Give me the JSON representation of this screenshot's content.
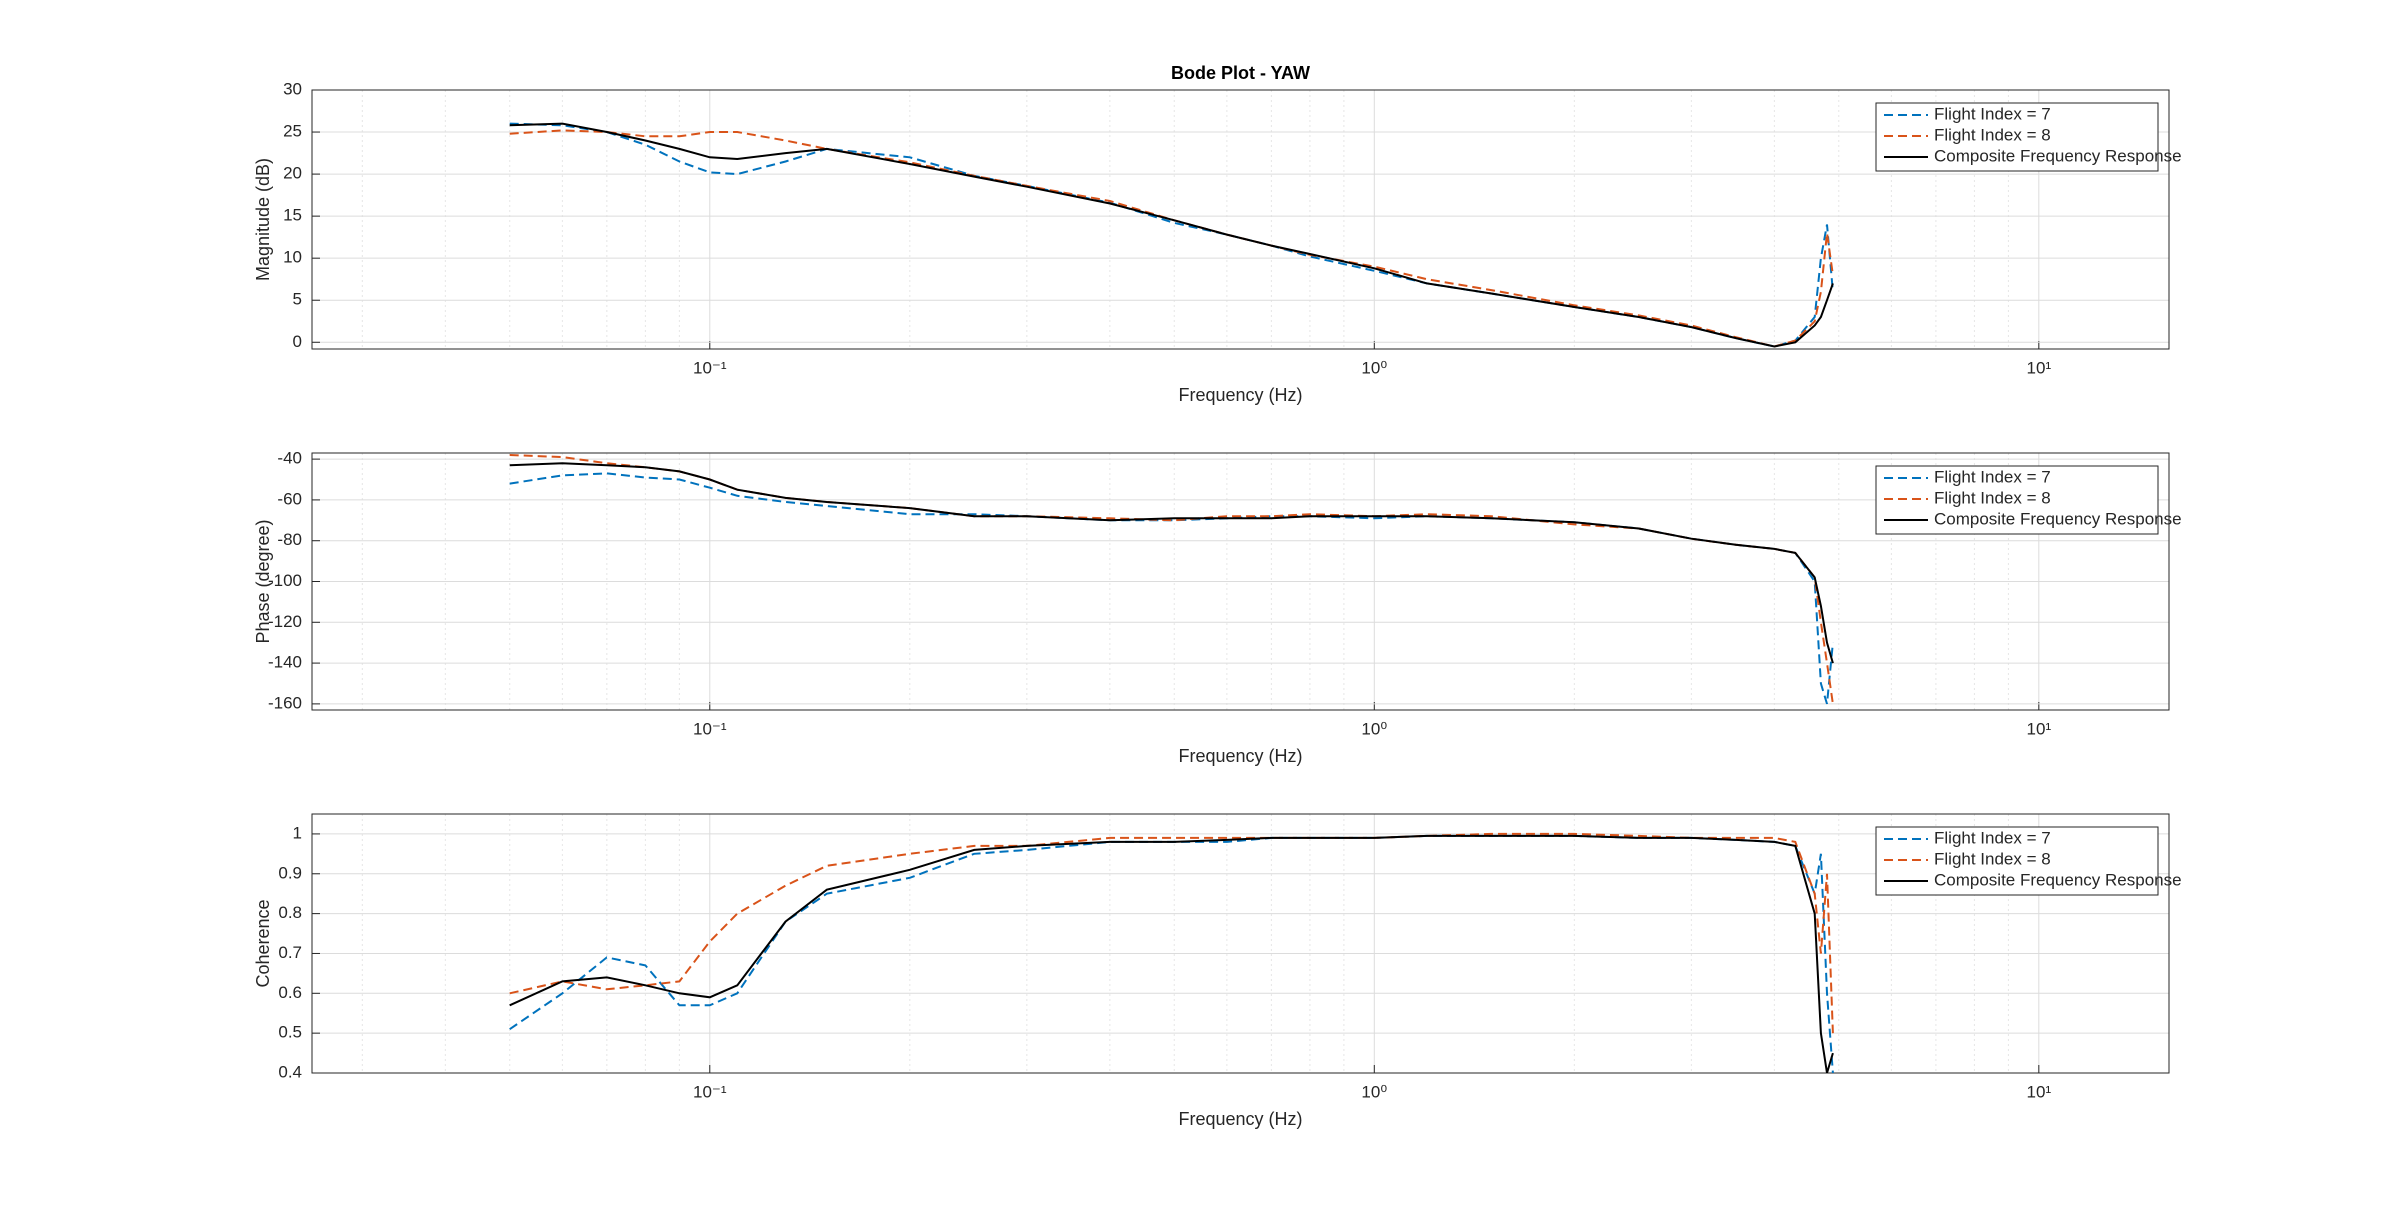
{
  "chart_data": [
    {
      "type": "line",
      "title": "Bode Plot - YAW",
      "xlabel": "Frequency (Hz)",
      "ylabel": "Magnitude (dB)",
      "xscale": "log",
      "grid": true,
      "legend": "northeast",
      "xlim": [
        0.0252,
        15.7
      ],
      "xticks": [
        {
          "value": 0.1,
          "label": "10⁻¹"
        },
        {
          "value": 1,
          "label": "10⁰"
        },
        {
          "value": 10,
          "label": "10¹"
        }
      ],
      "xminorticks": [
        0.03,
        0.04,
        0.05,
        0.06,
        0.07,
        0.08,
        0.09,
        0.2,
        0.3,
        0.4,
        0.5,
        0.6,
        0.7,
        0.8,
        0.9,
        2,
        3,
        4,
        5,
        6,
        7,
        8,
        9
      ],
      "ylim": [
        -0.8,
        30
      ],
      "yticks": [
        0,
        5,
        10,
        15,
        20,
        25,
        30
      ],
      "x": [
        0.05,
        0.06,
        0.07,
        0.08,
        0.09,
        0.1,
        0.11,
        0.13,
        0.15,
        0.2,
        0.25,
        0.3,
        0.4,
        0.5,
        0.6,
        0.7,
        0.8,
        1,
        1.2,
        1.5,
        2,
        2.5,
        3,
        3.5,
        4,
        4.3,
        4.6,
        4.7,
        4.8,
        4.9
      ],
      "series": [
        {
          "name": "Flight Index = 7",
          "color": "#0072bd",
          "linestyle": "dashed",
          "values": [
            26,
            25.8,
            25,
            23.5,
            21.5,
            20.2,
            20,
            21.5,
            23,
            22,
            19.8,
            18.6,
            16.6,
            14.2,
            12.8,
            11.5,
            10.2,
            8.5,
            7,
            5.8,
            4.2,
            3,
            1.8,
            0.5,
            -0.5,
            0.2,
            3,
            10,
            14,
            6
          ]
        },
        {
          "name": "Flight Index = 8",
          "color": "#d95319",
          "linestyle": "dashed",
          "values": [
            24.8,
            25.2,
            25,
            24.5,
            24.5,
            25,
            25,
            24,
            23,
            21.4,
            19.8,
            18.6,
            16.8,
            14.5,
            12.8,
            11.5,
            10.4,
            9,
            7.5,
            6.2,
            4.4,
            3.2,
            2,
            0.6,
            -0.5,
            0.2,
            2.5,
            6,
            13,
            8
          ]
        },
        {
          "name": "Composite Frequency Response",
          "color": "#000000",
          "linestyle": "solid",
          "values": [
            25.8,
            26,
            25,
            24,
            23,
            22,
            21.8,
            22.5,
            23,
            21.2,
            19.7,
            18.5,
            16.5,
            14.5,
            12.8,
            11.5,
            10.5,
            8.8,
            7,
            5.8,
            4.2,
            3,
            1.8,
            0.5,
            -0.5,
            0,
            2,
            3,
            5,
            7
          ]
        }
      ]
    },
    {
      "type": "line",
      "xlabel": "Frequency (Hz)",
      "ylabel": "Phase (degree)",
      "xscale": "log",
      "grid": true,
      "legend": "northeast",
      "xlim": [
        0.0252,
        15.7
      ],
      "xticks": [
        {
          "value": 0.1,
          "label": "10⁻¹"
        },
        {
          "value": 1,
          "label": "10⁰"
        },
        {
          "value": 10,
          "label": "10¹"
        }
      ],
      "xminorticks": [
        0.03,
        0.04,
        0.05,
        0.06,
        0.07,
        0.08,
        0.09,
        0.2,
        0.3,
        0.4,
        0.5,
        0.6,
        0.7,
        0.8,
        0.9,
        2,
        3,
        4,
        5,
        6,
        7,
        8,
        9
      ],
      "ylim": [
        -163,
        -37
      ],
      "yticks": [
        -160,
        -140,
        -120,
        -100,
        -80,
        -60,
        -40
      ],
      "x": [
        0.05,
        0.06,
        0.07,
        0.08,
        0.09,
        0.1,
        0.11,
        0.13,
        0.15,
        0.2,
        0.25,
        0.3,
        0.4,
        0.5,
        0.6,
        0.7,
        0.8,
        1,
        1.2,
        1.5,
        2,
        2.5,
        3,
        3.5,
        4,
        4.3,
        4.6,
        4.7,
        4.8,
        4.9
      ],
      "series": [
        {
          "name": "Flight Index = 7",
          "color": "#0072bd",
          "linestyle": "dashed",
          "values": [
            -52,
            -48,
            -47,
            -49,
            -50,
            -54,
            -58,
            -61,
            -63,
            -67,
            -67,
            -68,
            -70,
            -70,
            -69,
            -68,
            -68,
            -69,
            -68,
            -69,
            -71,
            -74,
            -79,
            -82,
            -84,
            -86,
            -100,
            -150,
            -160,
            -130
          ]
        },
        {
          "name": "Flight Index = 8",
          "color": "#d95319",
          "linestyle": "dashed",
          "values": [
            -38,
            -39,
            -42,
            -44,
            -46,
            -50,
            -55,
            -59,
            -61,
            -64,
            -68,
            -68,
            -69,
            -70,
            -68,
            -68,
            -67,
            -68,
            -67,
            -68,
            -72,
            -74,
            -79,
            -82,
            -84,
            -86,
            -98,
            -120,
            -140,
            -160
          ]
        },
        {
          "name": "Composite Frequency Response",
          "color": "#000000",
          "linestyle": "solid",
          "values": [
            -43,
            -42,
            -43,
            -44,
            -46,
            -50,
            -55,
            -59,
            -61,
            -64,
            -68,
            -68,
            -70,
            -69,
            -69,
            -69,
            -68,
            -68,
            -68,
            -69,
            -71,
            -74,
            -79,
            -82,
            -84,
            -86,
            -98,
            -112,
            -130,
            -140
          ]
        }
      ]
    },
    {
      "type": "line",
      "xlabel": "Frequency (Hz)",
      "ylabel": "Coherence",
      "xscale": "log",
      "grid": true,
      "legend": "northeast",
      "xlim": [
        0.0252,
        15.7
      ],
      "xticks": [
        {
          "value": 0.1,
          "label": "10⁻¹"
        },
        {
          "value": 1,
          "label": "10⁰"
        },
        {
          "value": 10,
          "label": "10¹"
        }
      ],
      "xminorticks": [
        0.03,
        0.04,
        0.05,
        0.06,
        0.07,
        0.08,
        0.09,
        0.2,
        0.3,
        0.4,
        0.5,
        0.6,
        0.7,
        0.8,
        0.9,
        2,
        3,
        4,
        5,
        6,
        7,
        8,
        9
      ],
      "ylim": [
        0.4,
        1.05
      ],
      "yticks": [
        0.4,
        0.5,
        0.6,
        0.7,
        0.8,
        0.9,
        1
      ],
      "x": [
        0.05,
        0.06,
        0.07,
        0.08,
        0.09,
        0.1,
        0.11,
        0.13,
        0.15,
        0.2,
        0.25,
        0.3,
        0.4,
        0.5,
        0.6,
        0.7,
        0.8,
        1,
        1.2,
        1.5,
        2,
        2.5,
        3,
        3.5,
        4,
        4.3,
        4.6,
        4.7,
        4.8,
        4.9
      ],
      "series": [
        {
          "name": "Flight Index = 7",
          "color": "#0072bd",
          "linestyle": "dashed",
          "values": [
            0.51,
            0.6,
            0.69,
            0.67,
            0.57,
            0.57,
            0.6,
            0.78,
            0.85,
            0.89,
            0.95,
            0.96,
            0.98,
            0.98,
            0.98,
            0.99,
            0.99,
            0.99,
            0.995,
            0.995,
            0.995,
            0.99,
            0.99,
            0.985,
            0.98,
            0.97,
            0.85,
            0.95,
            0.6,
            0.4
          ]
        },
        {
          "name": "Flight Index = 8",
          "color": "#d95319",
          "linestyle": "dashed",
          "values": [
            0.6,
            0.63,
            0.61,
            0.62,
            0.63,
            0.73,
            0.8,
            0.87,
            0.92,
            0.95,
            0.97,
            0.97,
            0.99,
            0.99,
            0.99,
            0.99,
            0.99,
            0.99,
            0.995,
            1,
            1,
            0.995,
            0.99,
            0.99,
            0.99,
            0.98,
            0.85,
            0.7,
            0.9,
            0.5
          ]
        },
        {
          "name": "Composite Frequency Response",
          "color": "#000000",
          "linestyle": "solid",
          "values": [
            0.57,
            0.63,
            0.64,
            0.62,
            0.6,
            0.59,
            0.62,
            0.78,
            0.86,
            0.91,
            0.96,
            0.97,
            0.98,
            0.98,
            0.985,
            0.99,
            0.99,
            0.99,
            0.995,
            0.995,
            0.995,
            0.99,
            0.99,
            0.985,
            0.98,
            0.97,
            0.8,
            0.5,
            0.4,
            0.45
          ]
        }
      ]
    }
  ]
}
